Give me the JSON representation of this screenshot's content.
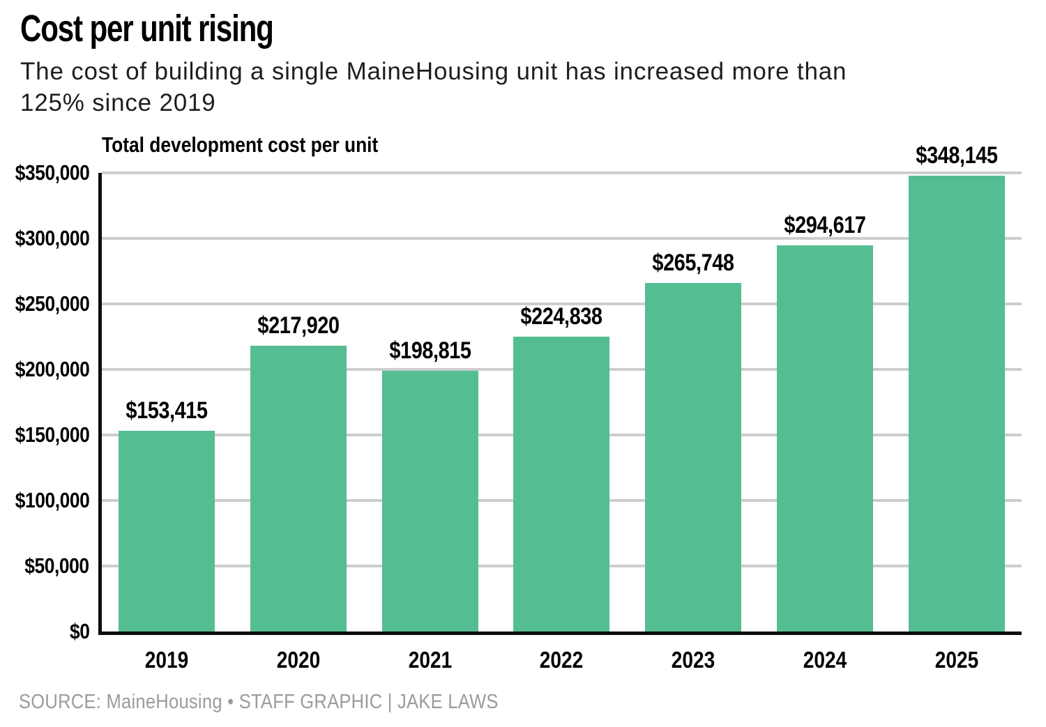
{
  "header": {
    "title": "Cost per unit rising",
    "subtitle_line1": "The cost of building a single MaineHousing unit has increased more than",
    "subtitle_line2": "125% since 2019"
  },
  "footer": {
    "source": "SOURCE: MaineHousing • STAFF GRAPHIC | JAKE LAWS"
  },
  "colors": {
    "bar_green": "#55bd92",
    "gridline_gray": "#cdcdcd",
    "axis_black": "#0d0d0d",
    "source_gray": "#9b9b9b"
  },
  "chart_data": {
    "type": "bar",
    "title": "Total development cost per unit",
    "categories": [
      "2019",
      "2020",
      "2021",
      "2022",
      "2023",
      "2024",
      "2025"
    ],
    "values": [
      153415,
      217920,
      198815,
      224838,
      265748,
      294617,
      348145
    ],
    "value_labels": [
      "$153,415",
      "$217,920",
      "$198,815",
      "$224,838",
      "$265,748",
      "$294,617",
      "$348,145"
    ],
    "y_ticks": [
      "$350,000",
      "$300,000",
      "$250,000",
      "$200,000",
      "$150,000",
      "$100,000",
      "$50,000",
      "$0"
    ],
    "ylim": [
      0,
      350000
    ],
    "xlabel": "",
    "ylabel": "",
    "grid": true,
    "legend": "none",
    "bar_color": "#55bd92"
  }
}
